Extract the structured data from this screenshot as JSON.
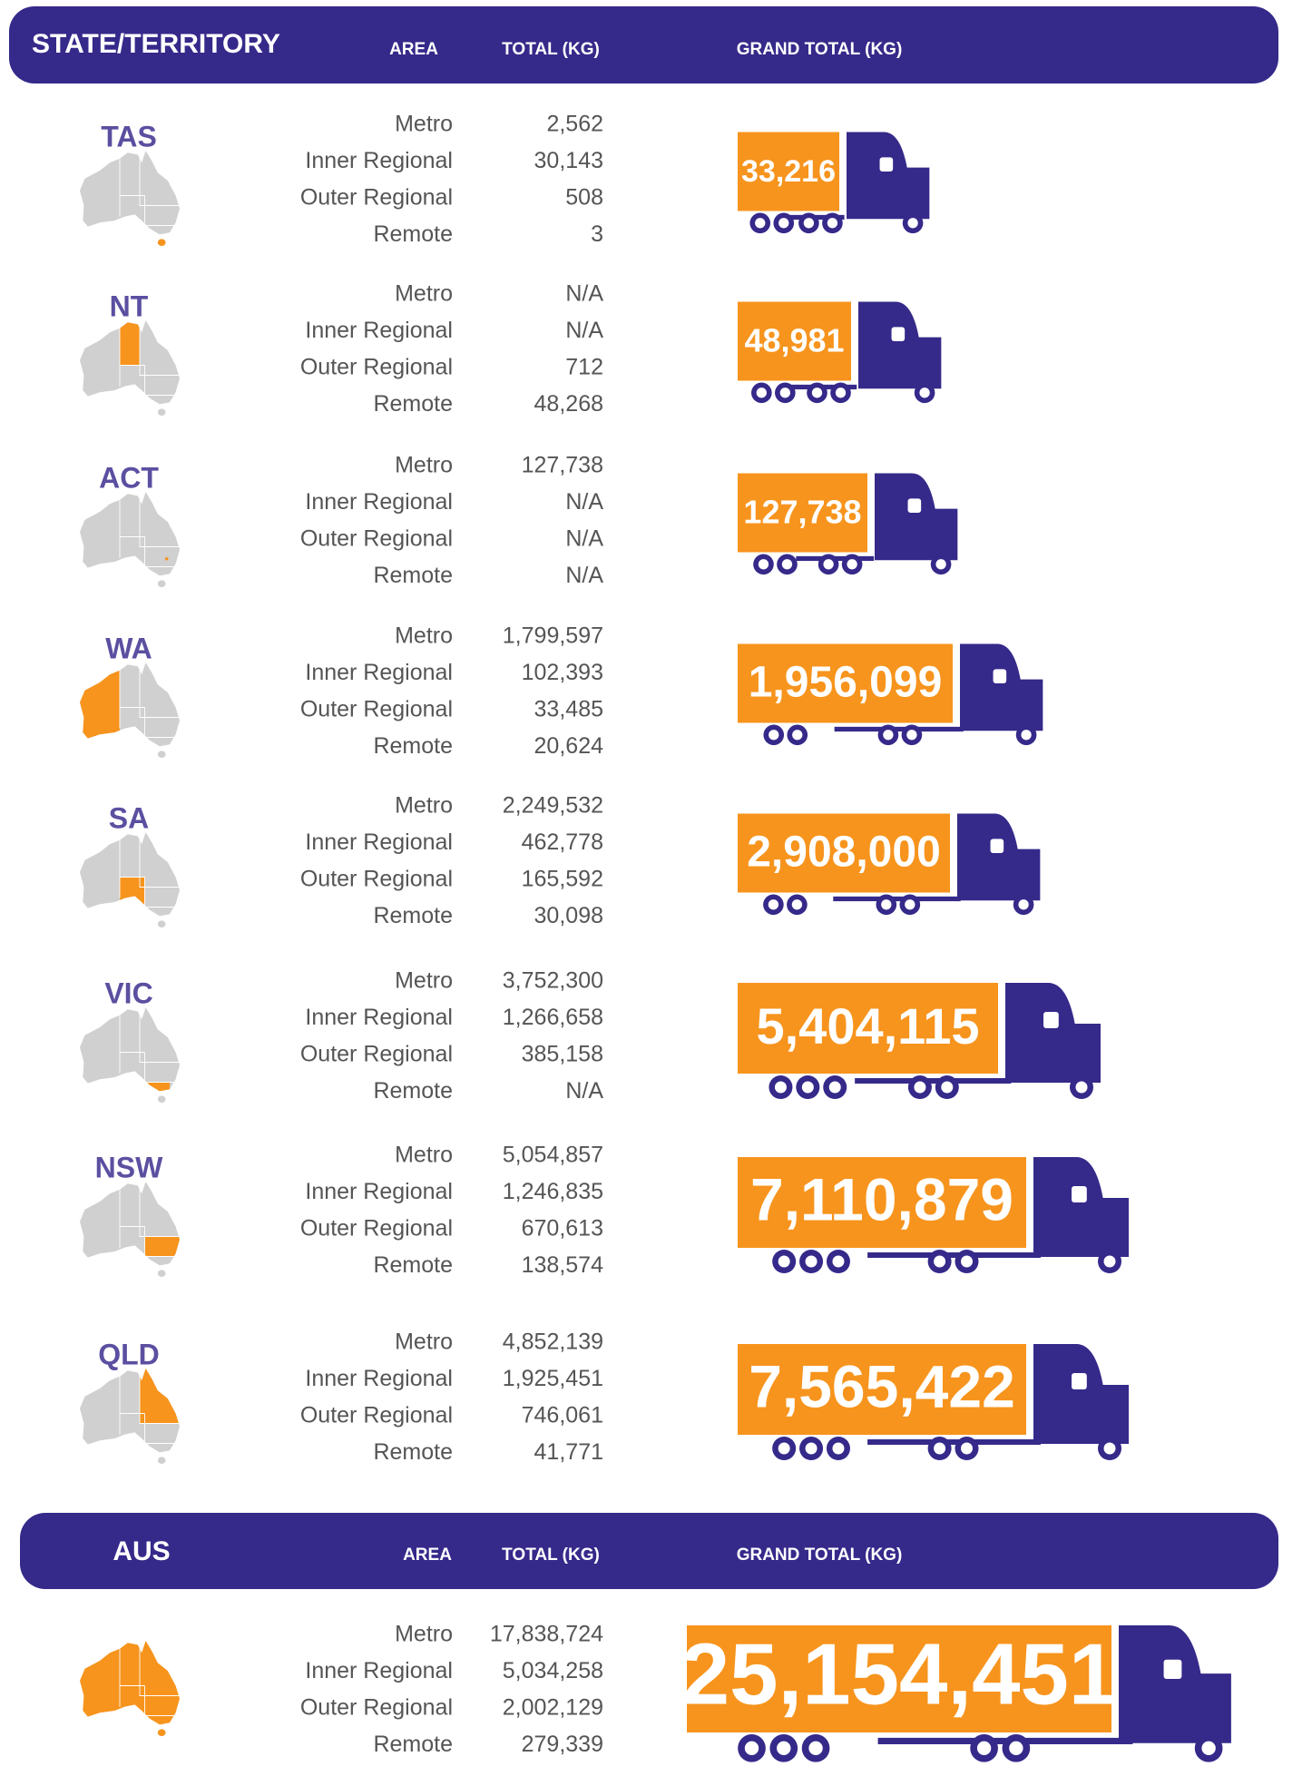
{
  "header": {
    "title": "STATE/TERRITORY",
    "area": "AREA",
    "total": "TOTAL (KG)",
    "grand_total": "GRAND TOTAL (KG)"
  },
  "states": [
    {
      "name": "TAS",
      "rows": [
        {
          "area": "Metro",
          "total": "2,562"
        },
        {
          "area": "Inner Regional",
          "total": "30,143"
        },
        {
          "area": "Outer Regional",
          "total": "508"
        },
        {
          "area": "Remote",
          "total": "3"
        }
      ],
      "grand_total": "33,216"
    },
    {
      "name": "NT",
      "rows": [
        {
          "area": "Metro",
          "total": "N/A"
        },
        {
          "area": "Inner Regional",
          "total": "N/A"
        },
        {
          "area": "Outer Regional",
          "total": "712"
        },
        {
          "area": "Remote",
          "total": "48,268"
        }
      ],
      "grand_total": "48,981"
    },
    {
      "name": "ACT",
      "rows": [
        {
          "area": "Metro",
          "total": "127,738"
        },
        {
          "area": "Inner Regional",
          "total": "N/A"
        },
        {
          "area": "Outer Regional",
          "total": "N/A"
        },
        {
          "area": "Remote",
          "total": "N/A"
        }
      ],
      "grand_total": "127,738"
    },
    {
      "name": "WA",
      "rows": [
        {
          "area": "Metro",
          "total": "1,799,597"
        },
        {
          "area": "Inner Regional",
          "total": "102,393"
        },
        {
          "area": "Outer Regional",
          "total": "33,485"
        },
        {
          "area": "Remote",
          "total": "20,624"
        }
      ],
      "grand_total": "1,956,099"
    },
    {
      "name": "SA",
      "rows": [
        {
          "area": "Metro",
          "total": "2,249,532"
        },
        {
          "area": "Inner Regional",
          "total": "462,778"
        },
        {
          "area": "Outer Regional",
          "total": "165,592"
        },
        {
          "area": "Remote",
          "total": "30,098"
        }
      ],
      "grand_total": "2,908,000"
    },
    {
      "name": "VIC",
      "rows": [
        {
          "area": "Metro",
          "total": "3,752,300"
        },
        {
          "area": "Inner Regional",
          "total": "1,266,658"
        },
        {
          "area": "Outer Regional",
          "total": "385,158"
        },
        {
          "area": "Remote",
          "total": "N/A"
        }
      ],
      "grand_total": "5,404,115"
    },
    {
      "name": "NSW",
      "rows": [
        {
          "area": "Metro",
          "total": "5,054,857"
        },
        {
          "area": "Inner Regional",
          "total": "1,246,835"
        },
        {
          "area": "Outer Regional",
          "total": "670,613"
        },
        {
          "area": "Remote",
          "total": "138,574"
        }
      ],
      "grand_total": "7,110,879"
    },
    {
      "name": "QLD",
      "rows": [
        {
          "area": "Metro",
          "total": "4,852,139"
        },
        {
          "area": "Inner Regional",
          "total": "1,925,451"
        },
        {
          "area": "Outer Regional",
          "total": "746,061"
        },
        {
          "area": "Remote",
          "total": "41,771"
        }
      ],
      "grand_total": "7,565,422"
    }
  ],
  "aus_header": {
    "title": "AUS",
    "area": "AREA",
    "total": "TOTAL (KG)",
    "grand_total": "GRAND TOTAL (KG)"
  },
  "aus": {
    "rows": [
      {
        "area": "Metro",
        "total": "17,838,724"
      },
      {
        "area": "Inner Regional",
        "total": "5,034,258"
      },
      {
        "area": "Outer Regional",
        "total": "2,002,129"
      },
      {
        "area": "Remote",
        "total": "279,339"
      }
    ],
    "grand_total": "25,154,451"
  }
}
